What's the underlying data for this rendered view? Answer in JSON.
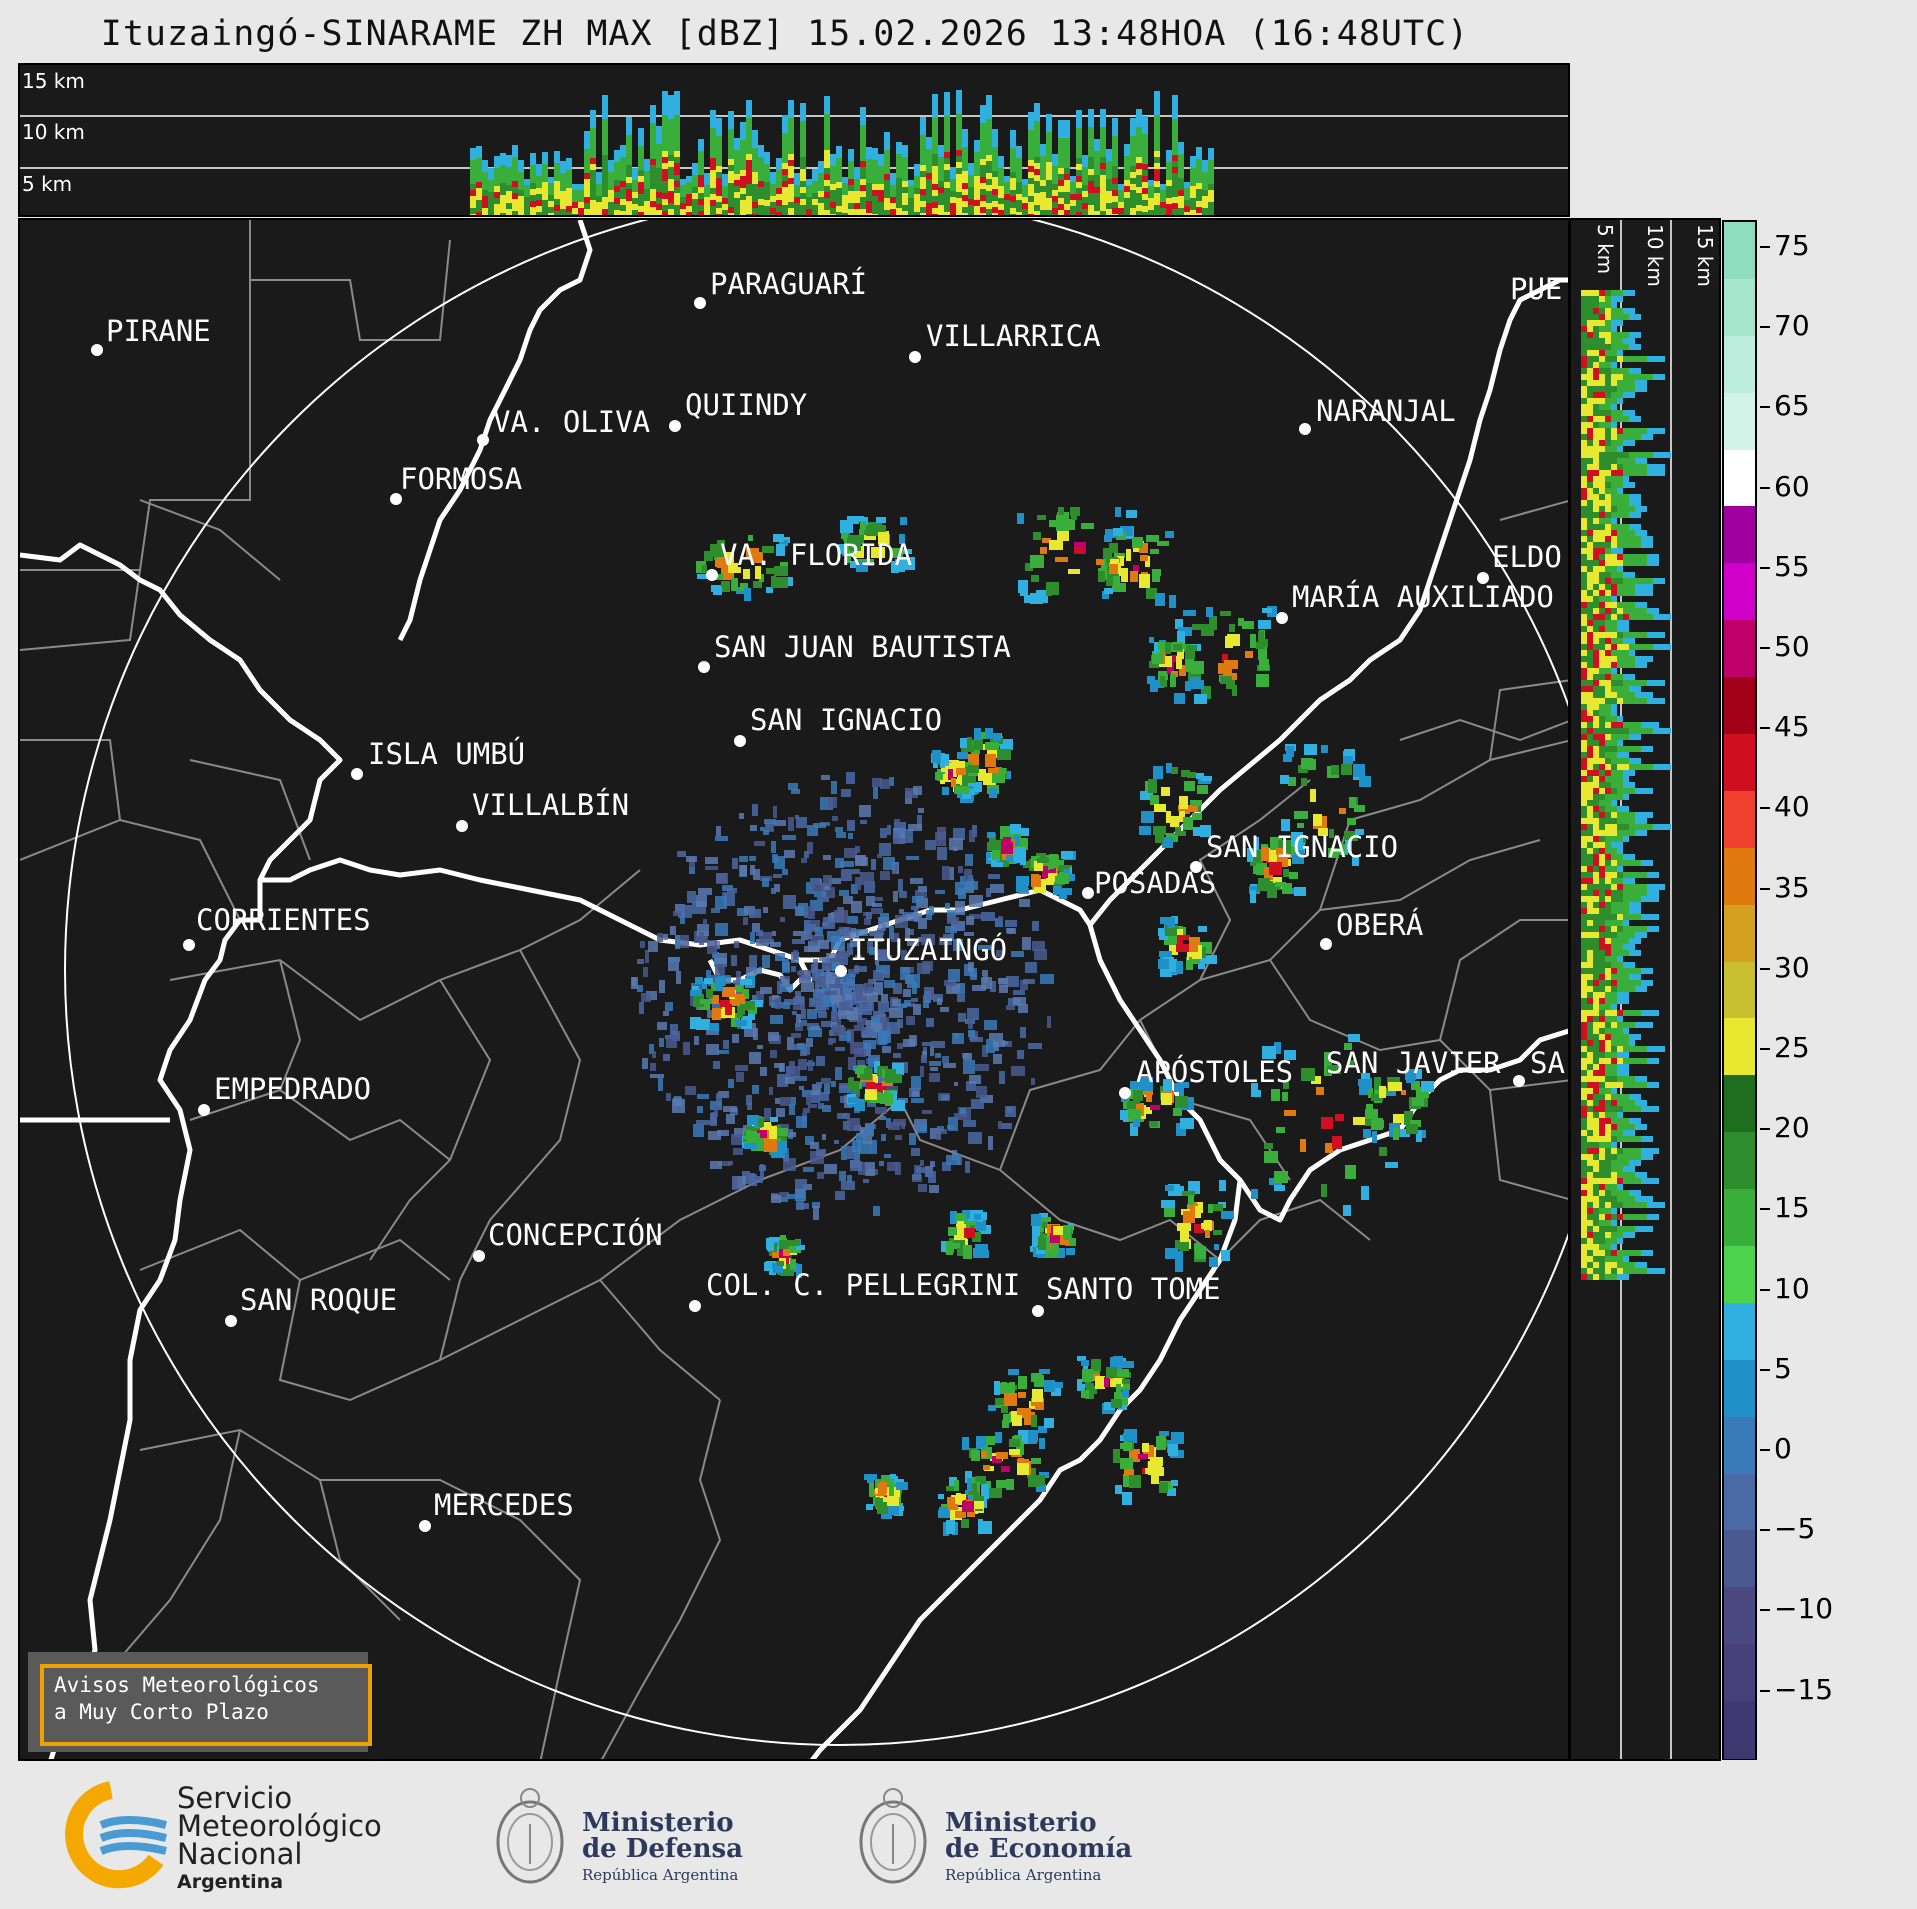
{
  "title": "Ituzaingó-SINARAME ZH MAX [dBZ] 15.02.2026 13:48HOA (16:48UTC)",
  "top_panel": {
    "altitudes": [
      "15 km",
      "10 km",
      "5 km"
    ]
  },
  "side_panel": {
    "altitudes": [
      "5 km",
      "10 km",
      "15 km"
    ]
  },
  "cities": [
    {
      "name": "PIRANE",
      "id": "pirane"
    },
    {
      "name": "PARAGUARÍ",
      "id": "paraguari"
    },
    {
      "name": "VILLARRICA",
      "id": "villarrica"
    },
    {
      "name": "VA. OLIVA",
      "id": "va-oliva"
    },
    {
      "name": "QUIINDY",
      "id": "quiindy"
    },
    {
      "name": "NARANJAL",
      "id": "naranjal"
    },
    {
      "name": "FORMOSA",
      "id": "formosa"
    },
    {
      "name": "VA. FLORIDA",
      "id": "va-florida"
    },
    {
      "name": "ELDO",
      "id": "eldorado"
    },
    {
      "name": "MARÍA AUXILIADO",
      "id": "maria-auxiliadora"
    },
    {
      "name": "SAN JUAN BAUTISTA",
      "id": "san-juan-bautista"
    },
    {
      "name": "SAN IGNACIO",
      "id": "san-ignacio-py"
    },
    {
      "name": "ISLA UMBÚ",
      "id": "isla-umbu"
    },
    {
      "name": "VILLALBÍN",
      "id": "villalbin"
    },
    {
      "name": "SAN IGNACIO",
      "id": "san-ignacio-ar"
    },
    {
      "name": "POSADAS",
      "id": "posadas"
    },
    {
      "name": "CORRIENTES",
      "id": "corrientes"
    },
    {
      "name": "ITUZAINGÓ",
      "id": "ituzaingo"
    },
    {
      "name": "OBERÁ",
      "id": "obera"
    },
    {
      "name": "EMPEDRADO",
      "id": "empedrado"
    },
    {
      "name": "APÓSTOLES",
      "id": "apostoles"
    },
    {
      "name": "SAN JAVIER",
      "id": "san-javier"
    },
    {
      "name": "SA",
      "id": "san-vicente"
    },
    {
      "name": "CONCEPCIÓN",
      "id": "concepcion"
    },
    {
      "name": "COL. C. PELLEGRINI",
      "id": "col-pellegrini"
    },
    {
      "name": "SANTO TOMÉ",
      "id": "santo-tome"
    },
    {
      "name": "SAN ROQUE",
      "id": "san-roque"
    },
    {
      "name": "MERCEDES",
      "id": "mercedes"
    },
    {
      "name": "PUE",
      "id": "puerto"
    }
  ],
  "colorbar": {
    "unit": "dBZ",
    "labels": [
      "75",
      "70",
      "65",
      "60",
      "55",
      "50",
      "45",
      "40",
      "35",
      "30",
      "25",
      "20",
      "15",
      "10",
      "5",
      "0",
      "−5",
      "−10",
      "−15"
    ],
    "colors": [
      "#8fdcc0",
      "#a6e6cf",
      "#bdeddc",
      "#d4f3e8",
      "#ffffff",
      "#a000a0",
      "#d000c8",
      "#c0006a",
      "#a00018",
      "#d01020",
      "#f04030",
      "#e07a10",
      "#d4a020",
      "#c8c030",
      "#e8e830",
      "#1f6e1f",
      "#2e8e2e",
      "#3aae3a",
      "#4cd24c",
      "#30b0e0",
      "#2090c8",
      "#3a7ab8",
      "#4a6aa6",
      "#4a5a90",
      "#4a4a80",
      "#48407a",
      "#403870"
    ]
  },
  "warning": {
    "line1": "Avisos Meteorológicos",
    "line2": "a Muy Corto Plazo"
  },
  "footer": {
    "smn": {
      "line1": "Servicio",
      "line2": "Meteorológico",
      "line3": "Nacional",
      "line4": "Argentina"
    },
    "defensa": {
      "line1": "Ministerio",
      "line2": "de Defensa",
      "line3": "República Argentina"
    },
    "economia": {
      "line1": "Ministerio",
      "line2": "de Economía",
      "line3": "República Argentina"
    }
  }
}
